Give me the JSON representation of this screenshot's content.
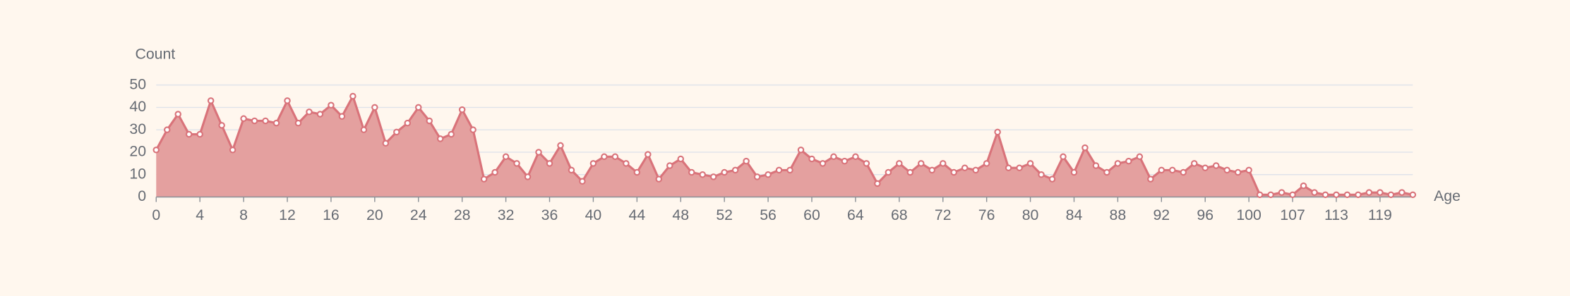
{
  "chart_data": {
    "type": "area",
    "y_axis_label": "Count",
    "x_axis_label": "Age",
    "categories": [
      "0",
      null,
      null,
      null,
      "4",
      null,
      null,
      null,
      "8",
      null,
      null,
      null,
      "12",
      null,
      null,
      null,
      "16",
      null,
      null,
      null,
      "20",
      null,
      null,
      null,
      "24",
      null,
      null,
      null,
      "28",
      null,
      null,
      null,
      "32",
      null,
      null,
      null,
      "36",
      null,
      null,
      null,
      "40",
      null,
      null,
      null,
      "44",
      null,
      null,
      null,
      "48",
      null,
      null,
      null,
      "52",
      null,
      null,
      null,
      "56",
      null,
      null,
      null,
      "60",
      null,
      null,
      null,
      "64",
      null,
      null,
      null,
      "68",
      null,
      null,
      null,
      "72",
      null,
      null,
      null,
      "76",
      null,
      null,
      null,
      "80",
      null,
      null,
      null,
      "84",
      null,
      null,
      null,
      "88",
      null,
      null,
      null,
      "92",
      null,
      null,
      null,
      "96",
      null,
      null,
      null,
      "100",
      null,
      null,
      null,
      "107",
      null,
      null,
      null,
      "113",
      null,
      null,
      null,
      "119",
      null,
      null,
      null
    ],
    "values": [
      21,
      30,
      37,
      28,
      28,
      43,
      32,
      21,
      35,
      34,
      34,
      33,
      43,
      33,
      38,
      37,
      41,
      36,
      45,
      30,
      40,
      24,
      29,
      33,
      40,
      34,
      26,
      28,
      39,
      30,
      8,
      11,
      18,
      15,
      9,
      20,
      15,
      23,
      12,
      7,
      15,
      18,
      18,
      15,
      11,
      19,
      8,
      14,
      17,
      11,
      10,
      9,
      11,
      12,
      16,
      9,
      10,
      12,
      12,
      21,
      17,
      15,
      18,
      16,
      18,
      15,
      6,
      11,
      15,
      11,
      15,
      12,
      15,
      11,
      13,
      12,
      15,
      29,
      13,
      13,
      15,
      10,
      8,
      18,
      11,
      22,
      14,
      11,
      15,
      16,
      18,
      8,
      12,
      12,
      11,
      15,
      13,
      14,
      12,
      11,
      12,
      1,
      1,
      2,
      1,
      5,
      2,
      1,
      1,
      1,
      1,
      2,
      2,
      1,
      2,
      1
    ],
    "line_color": "#d9737a",
    "fill_color": "#e4a09f",
    "ylim": [
      0,
      50
    ],
    "yticks": [
      0,
      10,
      20,
      30,
      40,
      50
    ],
    "grid": true
  }
}
